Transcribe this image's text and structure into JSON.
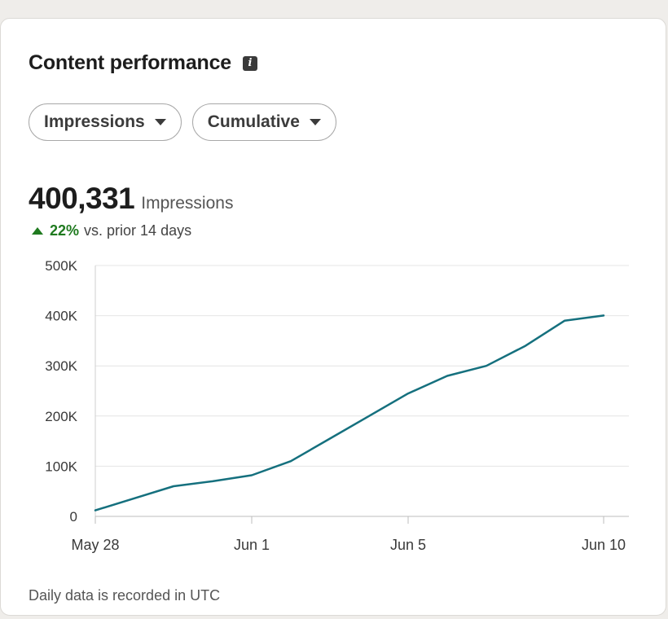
{
  "card": {
    "title": "Content performance",
    "info_icon": "info-icon",
    "filters": [
      {
        "label": "Impressions",
        "icon": "chevron-down-icon"
      },
      {
        "label": "Cumulative",
        "icon": "chevron-down-icon"
      }
    ],
    "metric": {
      "value": "400,331",
      "label": "Impressions",
      "change_pct": "22%",
      "change_text": "vs. prior 14 days",
      "change_icon": "arrow-up-icon",
      "change_color": "#1f7a1f"
    },
    "footnote": "Daily data is recorded in UTC"
  },
  "chart_data": {
    "type": "line",
    "line_color": "#15707e",
    "x": [
      "May 28",
      "May 29",
      "May 30",
      "May 31",
      "Jun 1",
      "Jun 2",
      "Jun 3",
      "Jun 4",
      "Jun 5",
      "Jun 6",
      "Jun 7",
      "Jun 8",
      "Jun 9",
      "Jun 10"
    ],
    "values": [
      12000,
      36000,
      60000,
      70000,
      82000,
      110000,
      155000,
      200000,
      245000,
      280000,
      300000,
      340000,
      390000,
      400331
    ],
    "x_ticks": [
      "May 28",
      "Jun 1",
      "Jun 5",
      "Jun 10"
    ],
    "y_ticks": [
      {
        "value": 0,
        "label": "0"
      },
      {
        "value": 100000,
        "label": "100K"
      },
      {
        "value": 200000,
        "label": "200K"
      },
      {
        "value": 300000,
        "label": "300K"
      },
      {
        "value": 400000,
        "label": "400K"
      },
      {
        "value": 500000,
        "label": "500K"
      }
    ],
    "ylim": [
      0,
      500000
    ],
    "grid": true
  }
}
